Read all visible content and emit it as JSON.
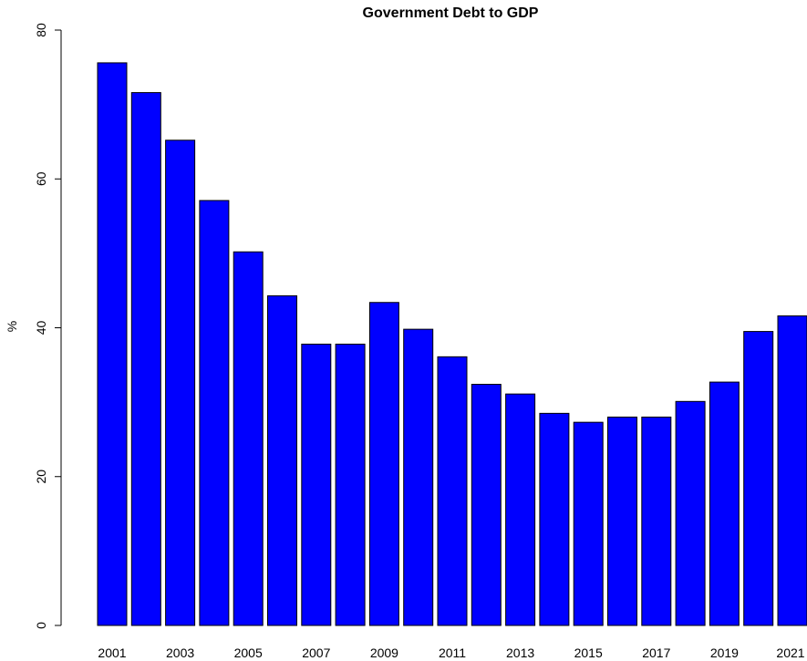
{
  "chart_data": {
    "type": "bar",
    "title": "Government Debt to GDP",
    "xlabel": "",
    "ylabel": "%",
    "categories": [
      "2001",
      "2002",
      "2003",
      "2004",
      "2005",
      "2006",
      "2007",
      "2008",
      "2009",
      "2010",
      "2011",
      "2012",
      "2013",
      "2014",
      "2015",
      "2016",
      "2017",
      "2018",
      "2019",
      "2020",
      "2021"
    ],
    "values": [
      75.6,
      71.6,
      65.2,
      57.1,
      50.2,
      44.3,
      37.8,
      37.8,
      43.4,
      39.8,
      36.1,
      32.4,
      31.1,
      28.5,
      27.3,
      28.0,
      28.0,
      30.1,
      32.7,
      39.5,
      41.6
    ],
    "x_tick_labels": [
      "2001",
      "2003",
      "2005",
      "2007",
      "2009",
      "2011",
      "2013",
      "2015",
      "2017",
      "2019",
      "2021"
    ],
    "y_ticks": [
      0,
      20,
      40,
      60,
      80
    ],
    "ylim": [
      0,
      80
    ],
    "bar_color": "#0000ff",
    "bar_border_color": "#000000",
    "grid": false,
    "legend": "none"
  }
}
